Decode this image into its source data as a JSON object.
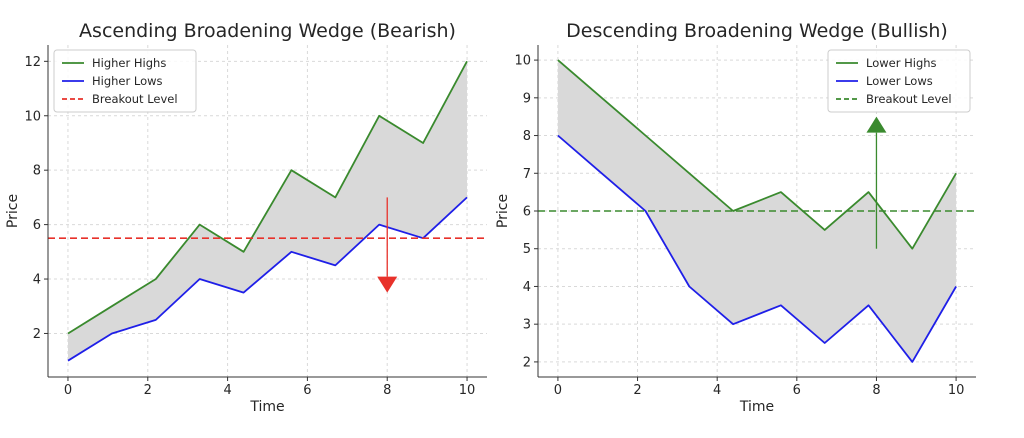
{
  "chart_data": [
    {
      "type": "line",
      "title": "Ascending Broadening Wedge (Bearish)",
      "xlabel": "Time",
      "ylabel": "Price",
      "xlim": [
        -0.5,
        10.5
      ],
      "ylim": [
        0.4,
        12.6
      ],
      "xticks": [
        0,
        2,
        4,
        6,
        8,
        10
      ],
      "yticks": [
        2,
        4,
        6,
        8,
        10,
        12
      ],
      "grid": true,
      "legend_position": "top-left",
      "series": [
        {
          "name": "Higher Highs",
          "color": "#3a8a2e",
          "style": "solid",
          "x": [
            0,
            1.1,
            2.2,
            3.3,
            4.4,
            5.6,
            6.7,
            7.8,
            8.9,
            10
          ],
          "y": [
            2,
            3,
            4,
            6,
            5,
            8,
            7,
            10,
            9,
            12
          ]
        },
        {
          "name": "Higher Lows",
          "color": "#1f1fe8",
          "style": "solid",
          "x": [
            0,
            1.1,
            2.2,
            3.3,
            4.4,
            5.6,
            6.7,
            7.8,
            8.9,
            10
          ],
          "y": [
            1,
            2,
            2.5,
            4,
            3.5,
            5,
            4.5,
            6,
            5.5,
            7
          ]
        },
        {
          "name": "Breakout Level",
          "color": "#e8312a",
          "style": "dashed",
          "hline": 5.5
        }
      ],
      "fill_color": "#d9d9d9",
      "arrow": {
        "x": 8,
        "from": 7,
        "to": 3.5,
        "color": "#e8312a",
        "direction": "down"
      }
    },
    {
      "type": "line",
      "title": "Descending Broadening Wedge (Bullish)",
      "xlabel": "Time",
      "ylabel": "Price",
      "xlim": [
        -0.5,
        10.5
      ],
      "ylim": [
        1.6,
        10.4
      ],
      "xticks": [
        0,
        2,
        4,
        6,
        8,
        10
      ],
      "yticks": [
        2,
        3,
        4,
        5,
        6,
        7,
        8,
        9,
        10
      ],
      "grid": true,
      "legend_position": "top-right",
      "series": [
        {
          "name": "Lower Highs",
          "color": "#3a8a2e",
          "style": "solid",
          "x": [
            0,
            1.1,
            2.2,
            3.3,
            4.4,
            5.6,
            6.7,
            7.8,
            8.9,
            10
          ],
          "y": [
            10,
            9,
            8,
            7,
            6,
            6.5,
            5.5,
            6.5,
            5,
            7
          ]
        },
        {
          "name": "Lower Lows",
          "color": "#1f1fe8",
          "style": "solid",
          "x": [
            0,
            1.1,
            2.2,
            3.3,
            4.4,
            5.6,
            6.7,
            7.8,
            8.9,
            10
          ],
          "y": [
            8,
            7,
            6,
            4,
            3,
            3.5,
            2.5,
            3.5,
            2,
            4
          ]
        },
        {
          "name": "Breakout Level",
          "color": "#3a8a2e",
          "style": "dashed",
          "hline": 6
        }
      ],
      "fill_color": "#d9d9d9",
      "arrow": {
        "x": 8,
        "from": 5,
        "to": 8.5,
        "color": "#3a8a2e",
        "direction": "up"
      }
    }
  ]
}
